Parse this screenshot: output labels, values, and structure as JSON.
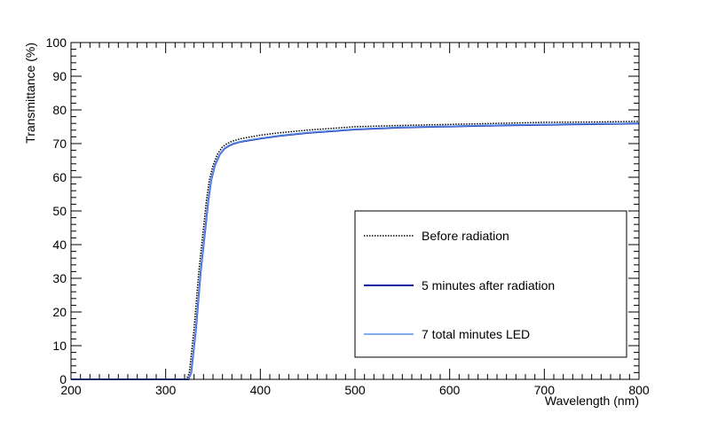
{
  "chart_data": {
    "type": "line",
    "title": "",
    "xlabel": "Wavelength (nm)",
    "ylabel": "Transmittance (%)",
    "xlim": [
      200,
      800
    ],
    "ylim": [
      0,
      100
    ],
    "x_ticks": [
      200,
      300,
      400,
      500,
      600,
      700,
      800
    ],
    "y_ticks": [
      0,
      10,
      20,
      30,
      40,
      50,
      60,
      70,
      80,
      90,
      100
    ],
    "grid": false,
    "legend_position": "bottom-right",
    "series": [
      {
        "name": "Before radiation",
        "color": "#000000",
        "style": "dotted",
        "x": [
          200,
          240,
          300,
          322,
          325,
          330,
          335,
          340,
          343,
          346,
          350,
          355,
          360,
          365,
          370,
          380,
          400,
          420,
          450,
          500,
          550,
          600,
          650,
          700,
          750,
          800
        ],
        "y": [
          0,
          0,
          0,
          0,
          2,
          15,
          32,
          45,
          53,
          59,
          63.5,
          67,
          69,
          70,
          70.7,
          71.5,
          72.5,
          73.2,
          74,
          75,
          75.4,
          75.7,
          76,
          76.3,
          76.4,
          76.6
        ]
      },
      {
        "name": "5 minutes after radiation",
        "color": "#0a1aa8",
        "style": "solid",
        "x": [
          200,
          240,
          300,
          324,
          327,
          332,
          337,
          342,
          345,
          348,
          352,
          357,
          362,
          367,
          372,
          380,
          400,
          420,
          450,
          500,
          550,
          600,
          650,
          700,
          750,
          800
        ],
        "y": [
          0,
          0,
          0,
          0,
          2,
          15,
          32,
          45,
          53,
          59,
          63.5,
          66.7,
          68.5,
          69.4,
          70,
          70.6,
          71.5,
          72.3,
          73.2,
          74.2,
          74.8,
          75.1,
          75.4,
          75.6,
          75.8,
          76
        ]
      },
      {
        "name": "7 total minutes LED",
        "color": "#5b8fe6",
        "style": "solid",
        "x": [
          200,
          240,
          300,
          324,
          327,
          332,
          337,
          342,
          345,
          348,
          352,
          357,
          362,
          367,
          372,
          380,
          400,
          420,
          450,
          500,
          550,
          600,
          650,
          700,
          750,
          800
        ],
        "y": [
          0,
          0,
          0,
          0,
          2,
          15,
          32,
          45,
          53,
          59,
          63.5,
          66.7,
          68.6,
          69.5,
          70.1,
          70.7,
          71.6,
          72.4,
          73.3,
          74.3,
          74.9,
          75.2,
          75.5,
          75.7,
          75.9,
          76.1
        ]
      }
    ]
  }
}
